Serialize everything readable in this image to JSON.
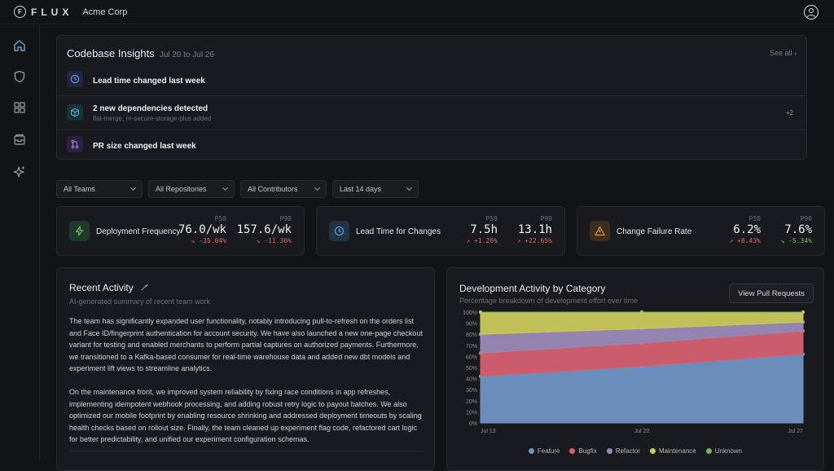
{
  "app": {
    "brand_mark": "F",
    "brand": "FLUX",
    "org": "Acme Corp"
  },
  "icons": {
    "sidebar": [
      "home-icon",
      "shield-icon",
      "grid-icon",
      "inbox-icon",
      "sparkle-icon"
    ],
    "user": "user-circle-icon"
  },
  "insights": {
    "title": "Codebase Insights",
    "range": "Jul 20 to Jul 26",
    "see_all": "See all ›",
    "items": [
      {
        "icon": "clock-icon",
        "text": "Lead time changed last week",
        "sub": "",
        "more": ""
      },
      {
        "icon": "cube-icon",
        "text": "2 new dependencies detected",
        "sub": "flat-merge, rn-secure-storage-plus added",
        "more": "+2"
      },
      {
        "icon": "git-pr-icon",
        "text": "PR size changed last week",
        "sub": "",
        "more": ""
      }
    ]
  },
  "filters": [
    "All Teams",
    "All Repositories",
    "All Contributors",
    "Last 14 days"
  ],
  "metrics": [
    {
      "name": "Deployment Frequency",
      "icon": "bolt-icon",
      "color": "#7fbf5e",
      "p50_label": "P50",
      "p50": "76.0/wk",
      "p50_delta": "-35.04%",
      "p50_dir": "neg",
      "p90_label": "P90",
      "p90": "157.6/wk",
      "p90_delta": "-11.36%",
      "p90_dir": "neg"
    },
    {
      "name": "Lead Time for Changes",
      "icon": "clock-icon",
      "color": "#6aa7d8",
      "p50_label": "P50",
      "p50": "7.5h",
      "p50_delta": "+1.26%",
      "p50_dir": "neg",
      "p90_label": "P90",
      "p90": "13.1h",
      "p90_delta": "+22.65%",
      "p90_dir": "neg"
    },
    {
      "name": "Change Failure Rate",
      "icon": "warning-icon",
      "color": "#e0a35a",
      "p50_label": "P50",
      "p50": "6.2%",
      "p50_delta": "+8.43%",
      "p50_dir": "neg",
      "p90_label": "P90",
      "p90": "7.6%",
      "p90_delta": "-5.34%",
      "p90_dir": "pos"
    }
  ],
  "recent_activity": {
    "title": "Recent Activity",
    "subtitle": "AI-generated summary of recent team work",
    "paragraphs": [
      "The team has significantly expanded user functionality, notably introducing pull-to-refresh on the orders list and Face ID/fingerprint authentication for account security. We have also launched a new one-page checkout variant for testing and enabled merchants to perform partial captures on authorized payments. Furthermore, we transitioned to a Kafka-based consumer for real-time warehouse data and added new dbt models and experiment lift views to streamline analytics.",
      "On the maintenance front, we improved system reliability by fixing race conditions in app refreshes, implementing idempotent webhook processing, and adding robust retry logic to payout batches. We also optimized our mobile footprint by enabling resource shrinking and addressed deployment timeouts by scaling health checks based on rollout size. Finally, the team cleaned up experiment flag code, refactored cart logic for better predictability, and unified our experiment configuration schemas."
    ]
  },
  "dev_activity": {
    "title": "Development Activity by Category",
    "subtitle": "Percentage breakdown of development effort over time",
    "button": "View Pull Requests"
  },
  "chart_data": {
    "type": "area",
    "stacked": true,
    "x": [
      "Jul 13",
      "Jul 20",
      "Jul 27"
    ],
    "ylim": [
      0,
      100
    ],
    "y_ticks": [
      "0%",
      "10%",
      "20%",
      "30%",
      "40%",
      "50%",
      "60%",
      "70%",
      "80%",
      "90%",
      "100%"
    ],
    "series": [
      {
        "name": "Feature",
        "color": "#6f93c4",
        "values": [
          42,
          51,
          62
        ]
      },
      {
        "name": "Bugfix",
        "color": "#d46070",
        "values": [
          21,
          21,
          21
        ]
      },
      {
        "name": "Refactor",
        "color": "#9a89b7",
        "values": [
          17,
          13,
          8
        ]
      },
      {
        "name": "Maintenance",
        "color": "#c9c95a",
        "values": [
          20,
          15,
          9
        ]
      },
      {
        "name": "Unknown",
        "color": "#6cb76a",
        "values": [
          0,
          0,
          0
        ]
      }
    ],
    "legend": "bottom",
    "grid": false
  }
}
